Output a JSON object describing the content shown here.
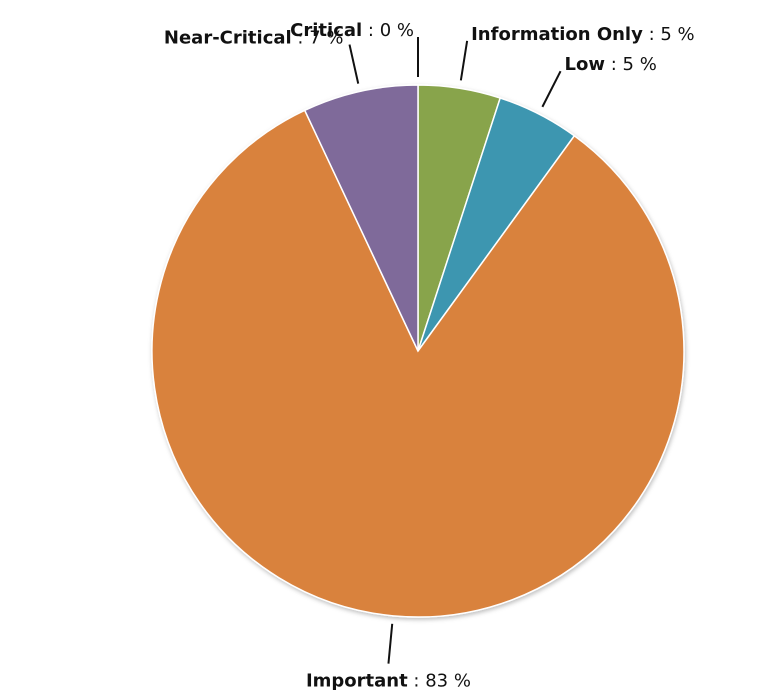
{
  "chart_data": {
    "type": "pie",
    "categories": [
      "Critical",
      "Information Only",
      "Low",
      "Important",
      "Near-Critical"
    ],
    "values": [
      0,
      5,
      5,
      83,
      7
    ],
    "value_labels": [
      "0 %",
      "5 %",
      "5 %",
      "83 %",
      "7 %"
    ],
    "label_separator": " : ",
    "colors": [
      "#c0504d",
      "#88a44c",
      "#3d96b0",
      "#d9823e",
      "#7f6a9a"
    ]
  }
}
